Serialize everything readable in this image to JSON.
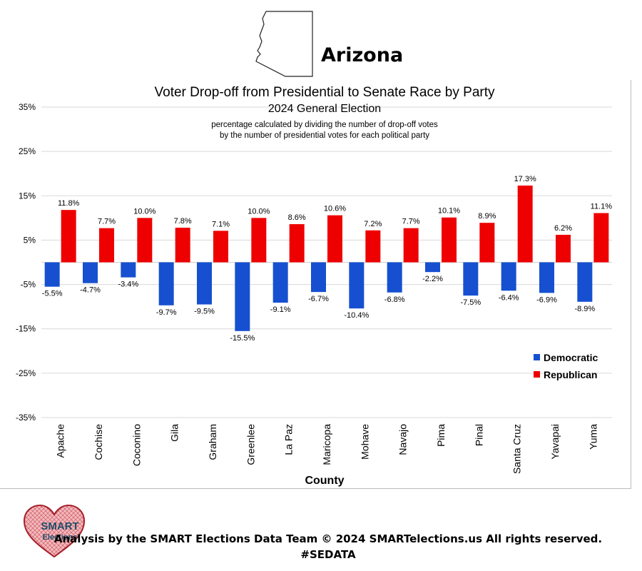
{
  "header": {
    "state_name": "Arizona"
  },
  "logo": {
    "line1": "SMART",
    "line2": "Elections",
    "icon": "heart-globe-icon"
  },
  "footer": {
    "line1": "Analysis by the SMART Elections Data Team © 2024 SMARTelections.us All rights reserved.",
    "line2": "#SEDATA"
  },
  "chart_data": {
    "type": "bar",
    "title": "Voter Drop-off from Presidential to Senate Race by Party",
    "subtitle": "2024 General Election",
    "note_line1": "percentage calculated by dividing the number of drop-off votes",
    "note_line2": "by the number of presidential votes for each political party",
    "xlabel": "County",
    "ylabel": "",
    "ylim": [
      -35,
      35
    ],
    "yticks": [
      35,
      25,
      15,
      5,
      -5,
      -15,
      -25,
      -35
    ],
    "ytick_labels": [
      "35%",
      "25%",
      "15%",
      "5%",
      "-5%",
      "-15%",
      "-25%",
      "-35%"
    ],
    "grid": true,
    "legend_position": "bottom-right",
    "categories": [
      "Apache",
      "Cochise",
      "Coconino",
      "Gila",
      "Graham",
      "Greenlee",
      "La Paz",
      "Maricopa",
      "Mohave",
      "Navajo",
      "Pima",
      "Pinal",
      "Santa Cruz",
      "Yavapai",
      "Yuma"
    ],
    "series": [
      {
        "name": "Democratic",
        "color": "#1650d0",
        "values": [
          -5.5,
          -4.7,
          -3.4,
          -9.7,
          -9.5,
          -15.5,
          -9.1,
          -6.7,
          -10.4,
          -6.8,
          -2.2,
          -7.5,
          -6.4,
          -6.9,
          -8.9
        ],
        "labels": [
          "-5.5%",
          "-4.7%",
          "-3.4%",
          "-9.7%",
          "-9.5%",
          "-15.5%",
          "-9.1%",
          "-6.7%",
          "-10.4%",
          "-6.8%",
          "-2.2%",
          "-7.5%",
          "-6.4%",
          "-6.9%",
          "-8.9%"
        ]
      },
      {
        "name": "Republican",
        "color": "#ee0000",
        "values": [
          11.8,
          7.7,
          10.0,
          7.8,
          7.1,
          10.0,
          8.6,
          10.6,
          7.2,
          7.7,
          10.1,
          8.9,
          17.3,
          6.2,
          11.1
        ],
        "labels": [
          "11.8%",
          "7.7%",
          "10.0%",
          "7.8%",
          "7.1%",
          "10.0%",
          "8.6%",
          "10.6%",
          "7.2%",
          "7.7%",
          "10.1%",
          "8.9%",
          "17.3%",
          "6.2%",
          "11.1%"
        ]
      }
    ]
  }
}
